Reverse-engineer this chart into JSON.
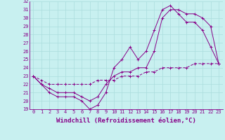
{
  "xlabel": "Windchill (Refroidissement éolien,°C)",
  "bg_color": "#c8f0f0",
  "line_color": "#880088",
  "xlim": [
    -0.5,
    23.5
  ],
  "ylim": [
    19,
    32
  ],
  "xticks": [
    0,
    1,
    2,
    3,
    4,
    5,
    6,
    7,
    8,
    9,
    10,
    11,
    12,
    13,
    14,
    15,
    16,
    17,
    18,
    19,
    20,
    21,
    22,
    23
  ],
  "yticks": [
    19,
    20,
    21,
    22,
    23,
    24,
    25,
    26,
    27,
    28,
    29,
    30,
    31,
    32
  ],
  "line1_x": [
    0,
    1,
    2,
    3,
    4,
    5,
    6,
    7,
    8,
    9,
    10,
    11,
    12,
    13,
    14,
    15,
    16,
    17,
    18,
    19,
    20,
    21,
    22,
    23
  ],
  "line1_y": [
    23,
    22,
    21,
    20.5,
    20.5,
    20.5,
    20,
    19,
    19.5,
    21,
    24,
    25,
    26.5,
    25,
    26,
    28.5,
    31,
    31.5,
    30.5,
    29.5,
    29.5,
    28.5,
    26.5,
    24.5
  ],
  "line2_x": [
    0,
    1,
    2,
    3,
    4,
    5,
    6,
    7,
    8,
    9,
    10,
    11,
    12,
    13,
    14,
    15,
    16,
    17,
    18,
    19,
    20,
    21,
    22,
    23
  ],
  "line2_y": [
    23,
    22,
    21.5,
    21,
    21,
    21,
    20.5,
    20,
    20.5,
    22,
    23,
    23.5,
    23.5,
    24,
    24,
    26,
    30,
    31,
    31,
    30.5,
    30.5,
    30,
    29,
    24.5
  ],
  "line3_x": [
    0,
    1,
    2,
    3,
    4,
    5,
    6,
    7,
    8,
    9,
    10,
    11,
    12,
    13,
    14,
    15,
    16,
    17,
    18,
    19,
    20,
    21,
    22,
    23
  ],
  "line3_y": [
    23,
    22.5,
    22,
    22,
    22,
    22,
    22,
    22,
    22.5,
    22.5,
    22.5,
    23,
    23,
    23,
    23.5,
    23.5,
    24,
    24,
    24,
    24,
    24.5,
    24.5,
    24.5,
    24.5
  ],
  "grid_color": "#aadddd",
  "tick_fontsize": 5,
  "xlabel_fontsize": 6.5,
  "line_width": 0.7,
  "marker_size": 2.5
}
